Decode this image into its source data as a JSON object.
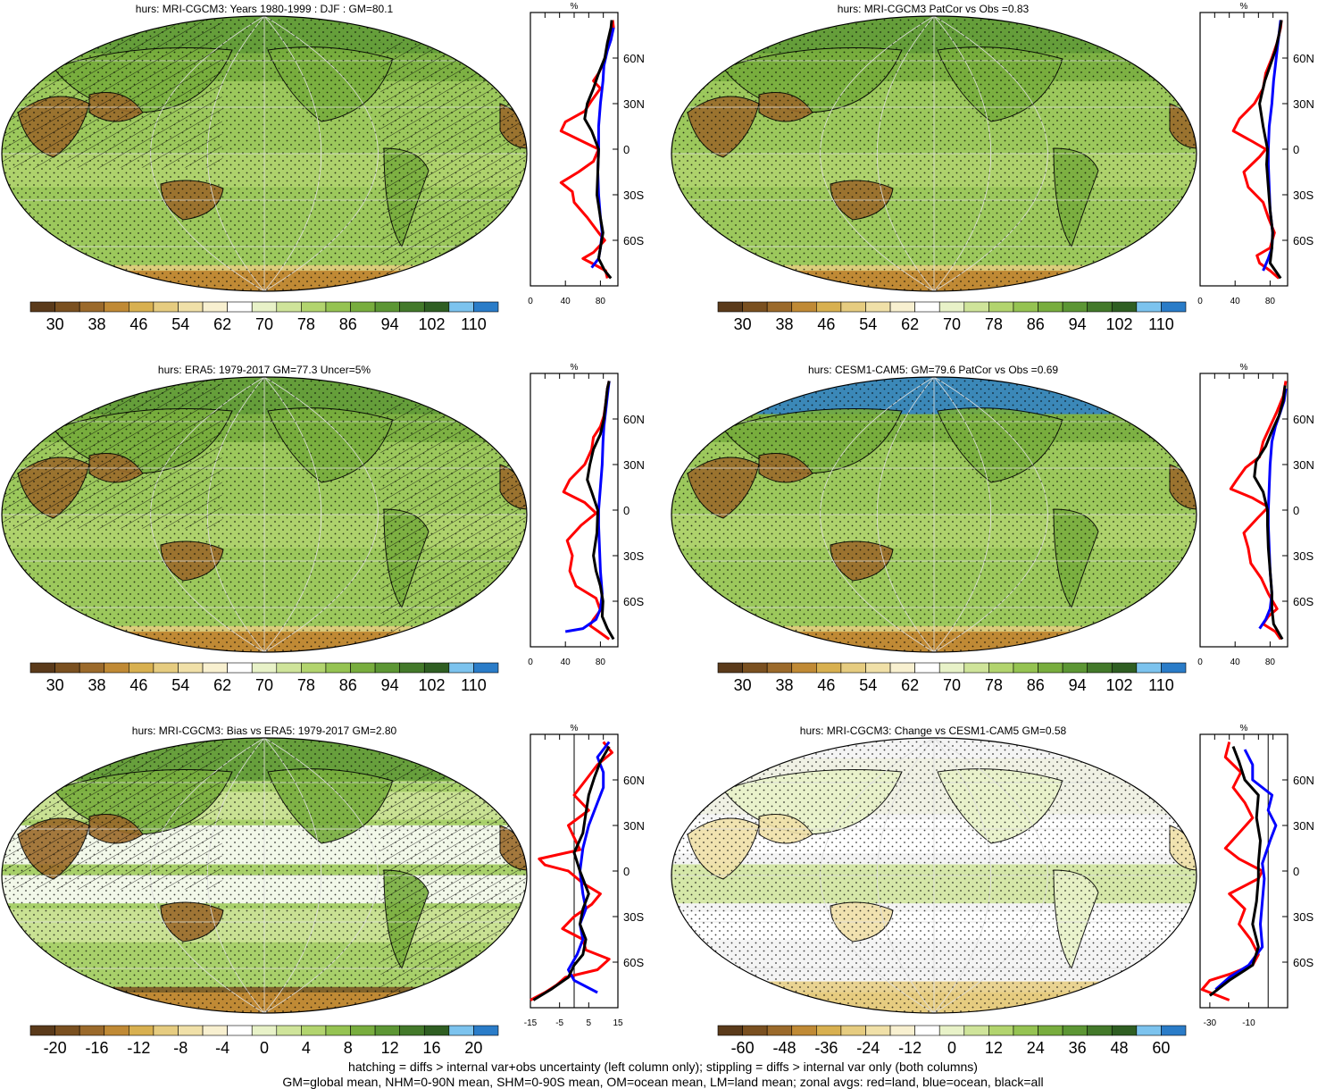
{
  "footer": {
    "line1": "hatching = diffs > internal var+obs uncertainty (left column only); stippling = diffs > internal var only (both columns)",
    "line2": "GM=global mean, NHM=0-90N mean, SHM=0-90S mean, OM=ocean mean, LM=land mean; zonal avgs: red=land, blue=ocean, black=all"
  },
  "lat_labels": [
    "60N",
    "30N",
    "0",
    "30S",
    "60S"
  ],
  "unit_label": "%",
  "colors": {
    "land": "#ff0000",
    "ocean": "#0000ff",
    "all": "#000000",
    "palette": [
      "#5a3a1a",
      "#7a5020",
      "#9b6a2b",
      "#c08a35",
      "#d8b050",
      "#e6cc80",
      "#f0e0a8",
      "#f8f0d0",
      "#ffffff",
      "#e8f2c8",
      "#cfe49a",
      "#b2d46e",
      "#95c352",
      "#78ad3e",
      "#5c9634",
      "#43792a",
      "#2f5e22",
      "#7cc3ee",
      "#2a7cc8"
    ]
  },
  "panels": [
    {
      "title": "hurs: MRI-CGCM3: Years 1980-1999 : DJF : GM=80.1",
      "map_kind": "abs",
      "hatched": true,
      "colorbar_labels": [
        "30",
        "38",
        "46",
        "54",
        "62",
        "70",
        "78",
        "86",
        "94",
        "102",
        "110"
      ],
      "chart_data": {
        "type": "line",
        "title": "",
        "xlabel": "%",
        "ylabel": "",
        "xlim": [
          0,
          100
        ],
        "ylim": [
          -90,
          90
        ],
        "x_ticks": [
          "0",
          "40",
          "80"
        ],
        "x_tick_values": [
          0,
          40,
          80
        ],
        "zero_line": false,
        "series": [
          {
            "key": "land",
            "lat": [
              -85,
              -80,
              -75,
              -72,
              -68,
              -60,
              -55,
              -45,
              -35,
              -28,
              -22,
              -15,
              -8,
              0,
              5,
              12,
              18,
              25,
              32,
              40,
              45,
              50,
              55,
              60,
              65,
              70,
              75,
              80,
              85
            ],
            "value": [
              88,
              86,
              70,
              60,
              72,
              85,
              78,
              65,
              50,
              48,
              35,
              55,
              72,
              78,
              60,
              35,
              40,
              62,
              70,
              80,
              72,
              78,
              82,
              85,
              88,
              90,
              92,
              95,
              94
            ]
          },
          {
            "key": "ocean",
            "lat": [
              -78,
              -72,
              -65,
              -55,
              -45,
              -30,
              -15,
              0,
              15,
              30,
              45,
              55,
              65,
              72,
              80
            ],
            "value": [
              70,
              78,
              80,
              82,
              80,
              78,
              77,
              78,
              78,
              80,
              83,
              84,
              88,
              92,
              95
            ]
          },
          {
            "key": "all",
            "lat": [
              -85,
              -80,
              -72,
              -65,
              -55,
              -45,
              -30,
              -15,
              0,
              12,
              20,
              30,
              40,
              50,
              60,
              70,
              80,
              85
            ],
            "value": [
              92,
              85,
              78,
              80,
              83,
              80,
              76,
              77,
              78,
              70,
              62,
              65,
              72,
              78,
              85,
              88,
              92,
              93
            ]
          }
        ]
      }
    },
    {
      "title": "hurs: MRI-CGCM3 PatCor vs Obs =0.83",
      "map_kind": "abs",
      "hatched": false,
      "colorbar_labels": [
        "30",
        "38",
        "46",
        "54",
        "62",
        "70",
        "78",
        "86",
        "94",
        "102",
        "110"
      ],
      "chart_data": {
        "type": "line",
        "title": "",
        "xlabel": "%",
        "ylabel": "",
        "xlim": [
          0,
          100
        ],
        "ylim": [
          -90,
          90
        ],
        "x_ticks": [
          "0",
          "40",
          "80"
        ],
        "x_tick_values": [
          0,
          40,
          80
        ],
        "zero_line": false,
        "series": [
          {
            "key": "land",
            "lat": [
              -85,
              -80,
              -75,
              -70,
              -65,
              -55,
              -45,
              -35,
              -25,
              -15,
              -5,
              0,
              5,
              12,
              20,
              30,
              40,
              50,
              60,
              70,
              80,
              85
            ],
            "value": [
              90,
              80,
              68,
              65,
              80,
              85,
              78,
              72,
              55,
              50,
              68,
              75,
              60,
              38,
              45,
              62,
              72,
              75,
              82,
              88,
              92,
              93
            ]
          },
          {
            "key": "ocean",
            "lat": [
              -80,
              -72,
              -65,
              -55,
              -40,
              -25,
              -10,
              0,
              15,
              30,
              45,
              55,
              65,
              75,
              85
            ],
            "value": [
              72,
              78,
              82,
              83,
              80,
              79,
              78,
              78,
              79,
              82,
              84,
              86,
              88,
              90,
              92
            ]
          },
          {
            "key": "all",
            "lat": [
              -85,
              -75,
              -65,
              -55,
              -40,
              -25,
              -10,
              0,
              15,
              30,
              45,
              55,
              65,
              75,
              85
            ],
            "value": [
              92,
              80,
              82,
              83,
              80,
              78,
              76,
              77,
              72,
              68,
              74,
              80,
              86,
              90,
              93
            ]
          }
        ]
      }
    },
    {
      "title": "hurs: ERA5: 1979-2017 GM=77.3 Uncer=5%",
      "map_kind": "abs",
      "hatched": true,
      "colorbar_labels": [
        "30",
        "38",
        "46",
        "54",
        "62",
        "70",
        "78",
        "86",
        "94",
        "102",
        "110"
      ],
      "chart_data": {
        "type": "line",
        "title": "",
        "xlabel": "%",
        "ylabel": "",
        "xlim": [
          0,
          100
        ],
        "ylim": [
          -90,
          90
        ],
        "x_ticks": [
          "0",
          "40",
          "80"
        ],
        "x_tick_values": [
          0,
          40,
          80
        ],
        "zero_line": false,
        "series": [
          {
            "key": "land",
            "lat": [
              -85,
              -80,
              -76,
              -72,
              -66,
              -58,
              -50,
              -40,
              -30,
              -20,
              -10,
              -2,
              5,
              12,
              20,
              30,
              40,
              48,
              55,
              62,
              70,
              80,
              85
            ],
            "value": [
              90,
              78,
              68,
              72,
              80,
              75,
              52,
              45,
              48,
              42,
              58,
              75,
              62,
              38,
              45,
              62,
              70,
              72,
              80,
              84,
              86,
              88,
              90
            ]
          },
          {
            "key": "ocean",
            "lat": [
              -80,
              -78,
              -72,
              -65,
              -55,
              -40,
              -25,
              -10,
              0,
              15,
              30,
              45,
              55,
              65,
              75,
              85
            ],
            "value": [
              40,
              60,
              75,
              80,
              82,
              80,
              79,
              78,
              78,
              80,
              82,
              83,
              84,
              86,
              88,
              90
            ]
          },
          {
            "key": "all",
            "lat": [
              -85,
              -78,
              -70,
              -60,
              -50,
              -40,
              -30,
              -15,
              0,
              12,
              20,
              30,
              40,
              50,
              60,
              70,
              80,
              85
            ],
            "value": [
              95,
              88,
              82,
              83,
              80,
              75,
              72,
              76,
              77,
              70,
              65,
              68,
              72,
              80,
              84,
              86,
              88,
              90
            ]
          }
        ]
      }
    },
    {
      "title": "hurs: CESM1-CAM5: GM=79.6 PatCor vs Obs =0.69",
      "map_kind": "abs",
      "hatched": false,
      "colorbar_labels": [
        "30",
        "38",
        "46",
        "54",
        "62",
        "70",
        "78",
        "86",
        "94",
        "102",
        "110"
      ],
      "chart_data": {
        "type": "line",
        "title": "",
        "xlabel": "%",
        "ylabel": "",
        "xlim": [
          0,
          100
        ],
        "ylim": [
          -90,
          90
        ],
        "x_ticks": [
          "0",
          "40",
          "80"
        ],
        "x_tick_values": [
          0,
          40,
          80
        ],
        "zero_line": false,
        "series": [
          {
            "key": "land",
            "lat": [
              -85,
              -80,
              -75,
              -70,
              -65,
              -55,
              -45,
              -35,
              -25,
              -15,
              -5,
              2,
              8,
              14,
              20,
              28,
              35,
              45,
              55,
              65,
              75,
              85
            ],
            "value": [
              92,
              86,
              72,
              78,
              88,
              78,
              70,
              58,
              55,
              50,
              66,
              78,
              60,
              35,
              42,
              52,
              68,
              72,
              80,
              88,
              95,
              98
            ]
          },
          {
            "key": "ocean",
            "lat": [
              -78,
              -72,
              -65,
              -55,
              -40,
              -25,
              -10,
              0,
              15,
              30,
              45,
              55,
              65,
              72,
              80
            ],
            "value": [
              68,
              75,
              80,
              82,
              80,
              79,
              78,
              78,
              79,
              80,
              82,
              86,
              92,
              96,
              98
            ]
          },
          {
            "key": "all",
            "lat": [
              -85,
              -75,
              -65,
              -55,
              -40,
              -25,
              -10,
              0,
              12,
              22,
              32,
              42,
              52,
              62,
              72,
              82
            ],
            "value": [
              94,
              84,
              82,
              82,
              80,
              78,
              77,
              77,
              72,
              62,
              64,
              75,
              82,
              90,
              95,
              97
            ]
          }
        ]
      }
    },
    {
      "title": "hurs: MRI-CGCM3: Bias vs ERA5: 1979-2017 GM=2.80",
      "map_kind": "bias",
      "hatched": true,
      "colorbar_labels": [
        "-20",
        "-16",
        "-12",
        "-8",
        "-4",
        "0",
        "4",
        "8",
        "12",
        "16",
        "20"
      ],
      "chart_data": {
        "type": "line",
        "title": "",
        "xlabel": "%",
        "ylabel": "",
        "xlim": [
          -15,
          15
        ],
        "ylim": [
          -90,
          90
        ],
        "x_ticks": [
          "-15",
          "-5",
          "5",
          "15"
        ],
        "x_tick_values": [
          -15,
          -5,
          5,
          15
        ],
        "zero_line": true,
        "series": [
          {
            "key": "land",
            "lat": [
              -85,
              -80,
              -75,
              -70,
              -65,
              -58,
              -52,
              -45,
              -38,
              -30,
              -22,
              -15,
              -8,
              0,
              4,
              8,
              14,
              22,
              30,
              40,
              50,
              60,
              70,
              78,
              85
            ],
            "value": [
              -15,
              -10,
              -6,
              -3,
              8,
              12,
              4,
              3,
              -4,
              0,
              6,
              9,
              3,
              -2,
              -10,
              -12,
              2,
              0,
              -2,
              5,
              0,
              4,
              8,
              13,
              10
            ]
          },
          {
            "key": "ocean",
            "lat": [
              -80,
              -72,
              -65,
              -55,
              -45,
              -35,
              -25,
              -15,
              0,
              15,
              30,
              45,
              55,
              65,
              75,
              85
            ],
            "value": [
              8,
              0,
              -2,
              1,
              3,
              2,
              4,
              3,
              2,
              3,
              5,
              8,
              10,
              10,
              8,
              12
            ]
          },
          {
            "key": "all",
            "lat": [
              -85,
              -78,
              -70,
              -62,
              -55,
              -45,
              -35,
              -25,
              -15,
              0,
              12,
              25,
              38,
              50,
              62,
              72,
              82
            ],
            "value": [
              -14,
              -8,
              -2,
              0,
              3,
              4,
              2,
              3,
              5,
              2,
              0,
              3,
              4,
              5,
              7,
              9,
              12
            ]
          }
        ]
      }
    },
    {
      "title": "hurs: MRI-CGCM3: Change vs CESM1-CAM5 GM=0.58",
      "map_kind": "change",
      "hatched": false,
      "colorbar_labels": [
        "-60",
        "-48",
        "-36",
        "-24",
        "-12",
        "0",
        "12",
        "24",
        "36",
        "48",
        "60"
      ],
      "chart_data": {
        "type": "line",
        "title": "",
        "xlabel": "%",
        "ylabel": "",
        "xlim": [
          -35,
          10
        ],
        "ylim": [
          -90,
          90
        ],
        "x_ticks": [
          "-30",
          "-10"
        ],
        "x_tick_values": [
          -30,
          -10
        ],
        "zero_line": true,
        "series": [
          {
            "key": "land",
            "lat": [
              -85,
              -78,
              -72,
              -68,
              -62,
              -55,
              -45,
              -35,
              -25,
              -15,
              -5,
              0,
              8,
              15,
              25,
              35,
              45,
              55,
              65,
              75,
              85
            ],
            "value": [
              -20,
              -34,
              -30,
              -20,
              -8,
              -5,
              -9,
              -15,
              -12,
              -20,
              -5,
              -3,
              -15,
              -22,
              -15,
              -8,
              -12,
              -18,
              -14,
              -22,
              -20
            ]
          },
          {
            "key": "ocean",
            "lat": [
              -78,
              -70,
              -62,
              -50,
              -35,
              -20,
              -5,
              5,
              20,
              30,
              40,
              50,
              60,
              70,
              80
            ],
            "value": [
              -27,
              -20,
              -10,
              -3,
              -4,
              -3,
              -2,
              -3,
              1,
              4,
              0,
              2,
              -8,
              -8,
              -12
            ]
          },
          {
            "key": "all",
            "lat": [
              -82,
              -72,
              -62,
              -50,
              -35,
              -20,
              -5,
              5,
              20,
              35,
              50,
              60,
              72,
              82
            ],
            "value": [
              -30,
              -20,
              -8,
              -5,
              -8,
              -6,
              -5,
              -5,
              -4,
              -6,
              -5,
              -12,
              -15,
              -18
            ]
          }
        ]
      }
    }
  ]
}
